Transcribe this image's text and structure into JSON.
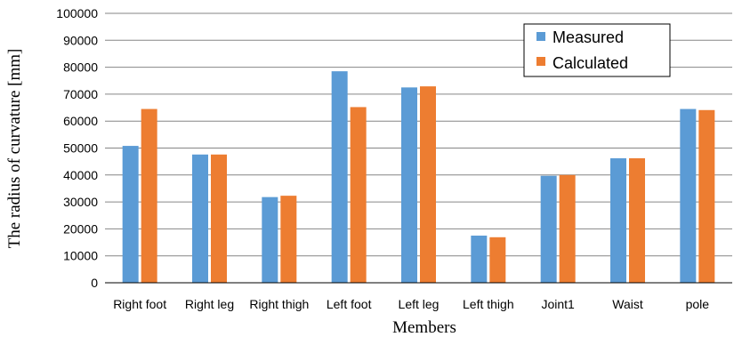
{
  "chart_data": {
    "type": "bar",
    "title": "",
    "xlabel": "Members",
    "ylabel": "The radius  of curvature  [mm]",
    "categories": [
      "Right foot",
      "Right leg",
      "Right thigh",
      "Left foot",
      "Left leg",
      "Left thigh",
      "Joint1",
      "Waist",
      "pole"
    ],
    "series": [
      {
        "name": "Measured",
        "color": "#5B9BD5",
        "values": [
          50800,
          47600,
          31800,
          78500,
          72500,
          17500,
          39700,
          46200,
          64500
        ]
      },
      {
        "name": "Calculated",
        "color": "#ED7D31",
        "values": [
          64500,
          47600,
          32300,
          65200,
          72900,
          16900,
          40000,
          46200,
          64100
        ]
      }
    ],
    "ylim": [
      0,
      100000
    ],
    "yticks": [
      "0",
      "10000",
      "20000",
      "30000",
      "40000",
      "50000",
      "60000",
      "70000",
      "80000",
      "90000",
      "100000"
    ],
    "grid": true,
    "legend_position": "top-right"
  }
}
